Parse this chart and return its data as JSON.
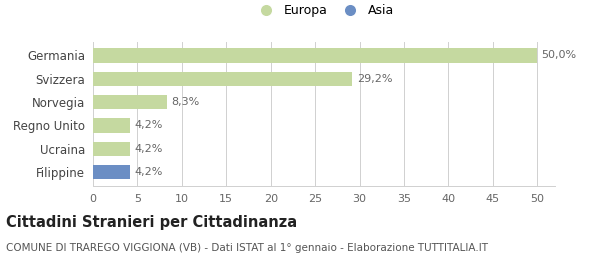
{
  "categories": [
    "Germania",
    "Svizzera",
    "Norvegia",
    "Regno Unito",
    "Ucraina",
    "Filippine"
  ],
  "values": [
    50.0,
    29.2,
    8.3,
    4.2,
    4.2,
    4.2
  ],
  "labels": [
    "50,0%",
    "29,2%",
    "8,3%",
    "4,2%",
    "4,2%",
    "4,2%"
  ],
  "colors": [
    "#c5d9a0",
    "#c5d9a0",
    "#c5d9a0",
    "#c5d9a0",
    "#c5d9a0",
    "#6b8ec4"
  ],
  "legend_items": [
    {
      "label": "Europa",
      "color": "#c5d9a0"
    },
    {
      "label": "Asia",
      "color": "#6b8ec4"
    }
  ],
  "xlim": [
    0,
    52
  ],
  "xticks": [
    0,
    5,
    10,
    15,
    20,
    25,
    30,
    35,
    40,
    45,
    50
  ],
  "title_bold": "Cittadini Stranieri per Cittadinanza",
  "subtitle": "COMUNE DI TRAREGO VIGGIONA (VB) - Dati ISTAT al 1° gennaio - Elaborazione TUTTITALIA.IT",
  "background_color": "#ffffff",
  "grid_color": "#d0d0d0",
  "bar_height": 0.62,
  "label_fontsize": 8.0,
  "ytick_fontsize": 8.5,
  "xtick_fontsize": 8.0,
  "title_fontsize": 10.5,
  "subtitle_fontsize": 7.5,
  "legend_fontsize": 9.0
}
